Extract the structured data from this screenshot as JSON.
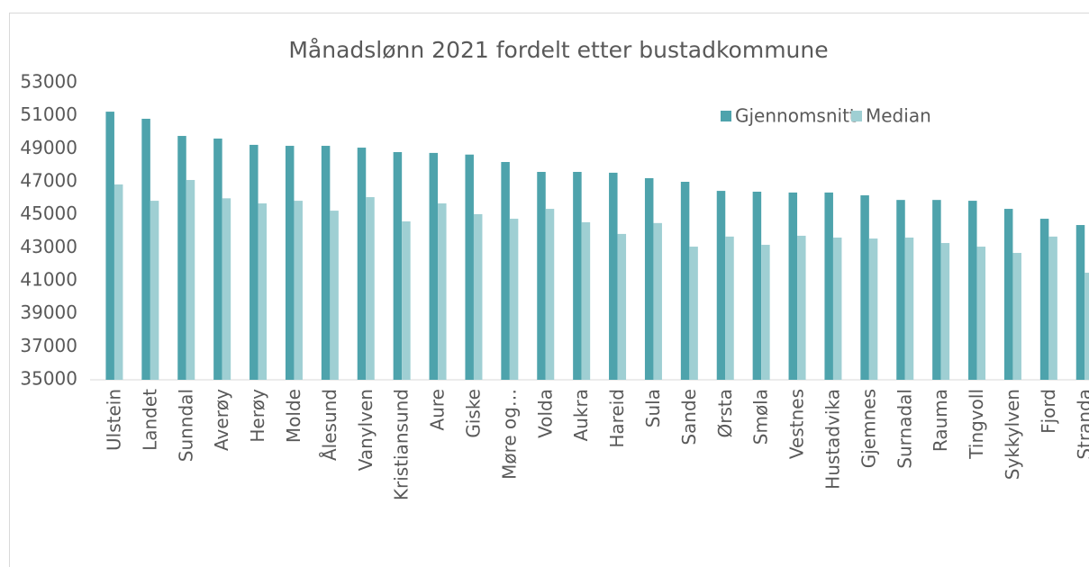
{
  "chart_data": {
    "type": "bar",
    "title": "Månadslønn 2021 fordelt etter bustadkommune",
    "categories": [
      "Ulstein",
      "Landet",
      "Sunndal",
      "Averøy",
      "Herøy",
      "Molde",
      "Ålesund",
      "Vanylven",
      "Kristiansund",
      "Aure",
      "Giske",
      "Møre og…",
      "Volda",
      "Aukra",
      "Hareid",
      "Sula",
      "Sande",
      "Ørsta",
      "Smøla",
      "Vestnes",
      "Hustadvika",
      "Gjemnes",
      "Surnadal",
      "Rauma",
      "Tingvoll",
      "Sykkylven",
      "Fjord",
      "Stranda"
    ],
    "series": [
      {
        "name": "Gjennomsnitt",
        "color": "#4ea3ac",
        "values": [
          51250,
          50820,
          49780,
          49620,
          49240,
          49180,
          49180,
          49070,
          48800,
          48750,
          48650,
          48200,
          47600,
          47600,
          47550,
          47220,
          47000,
          46450,
          46400,
          46350,
          46350,
          46180,
          45900,
          45900,
          45850,
          45360,
          44760,
          44380
        ]
      },
      {
        "name": "Median",
        "color": "#9fcfd3",
        "values": [
          46840,
          45850,
          47110,
          46000,
          45690,
          45850,
          45250,
          46070,
          44600,
          45690,
          45040,
          44760,
          45360,
          44550,
          43840,
          44500,
          43070,
          43680,
          43180,
          43730,
          43620,
          43560,
          43620,
          43290,
          43070,
          42690,
          43680,
          41490
        ]
      }
    ],
    "ylim": [
      35000,
      53000
    ],
    "yticks": [
      35000,
      37000,
      39000,
      41000,
      43000,
      45000,
      47000,
      49000,
      51000,
      53000
    ],
    "legend": "top-right"
  }
}
